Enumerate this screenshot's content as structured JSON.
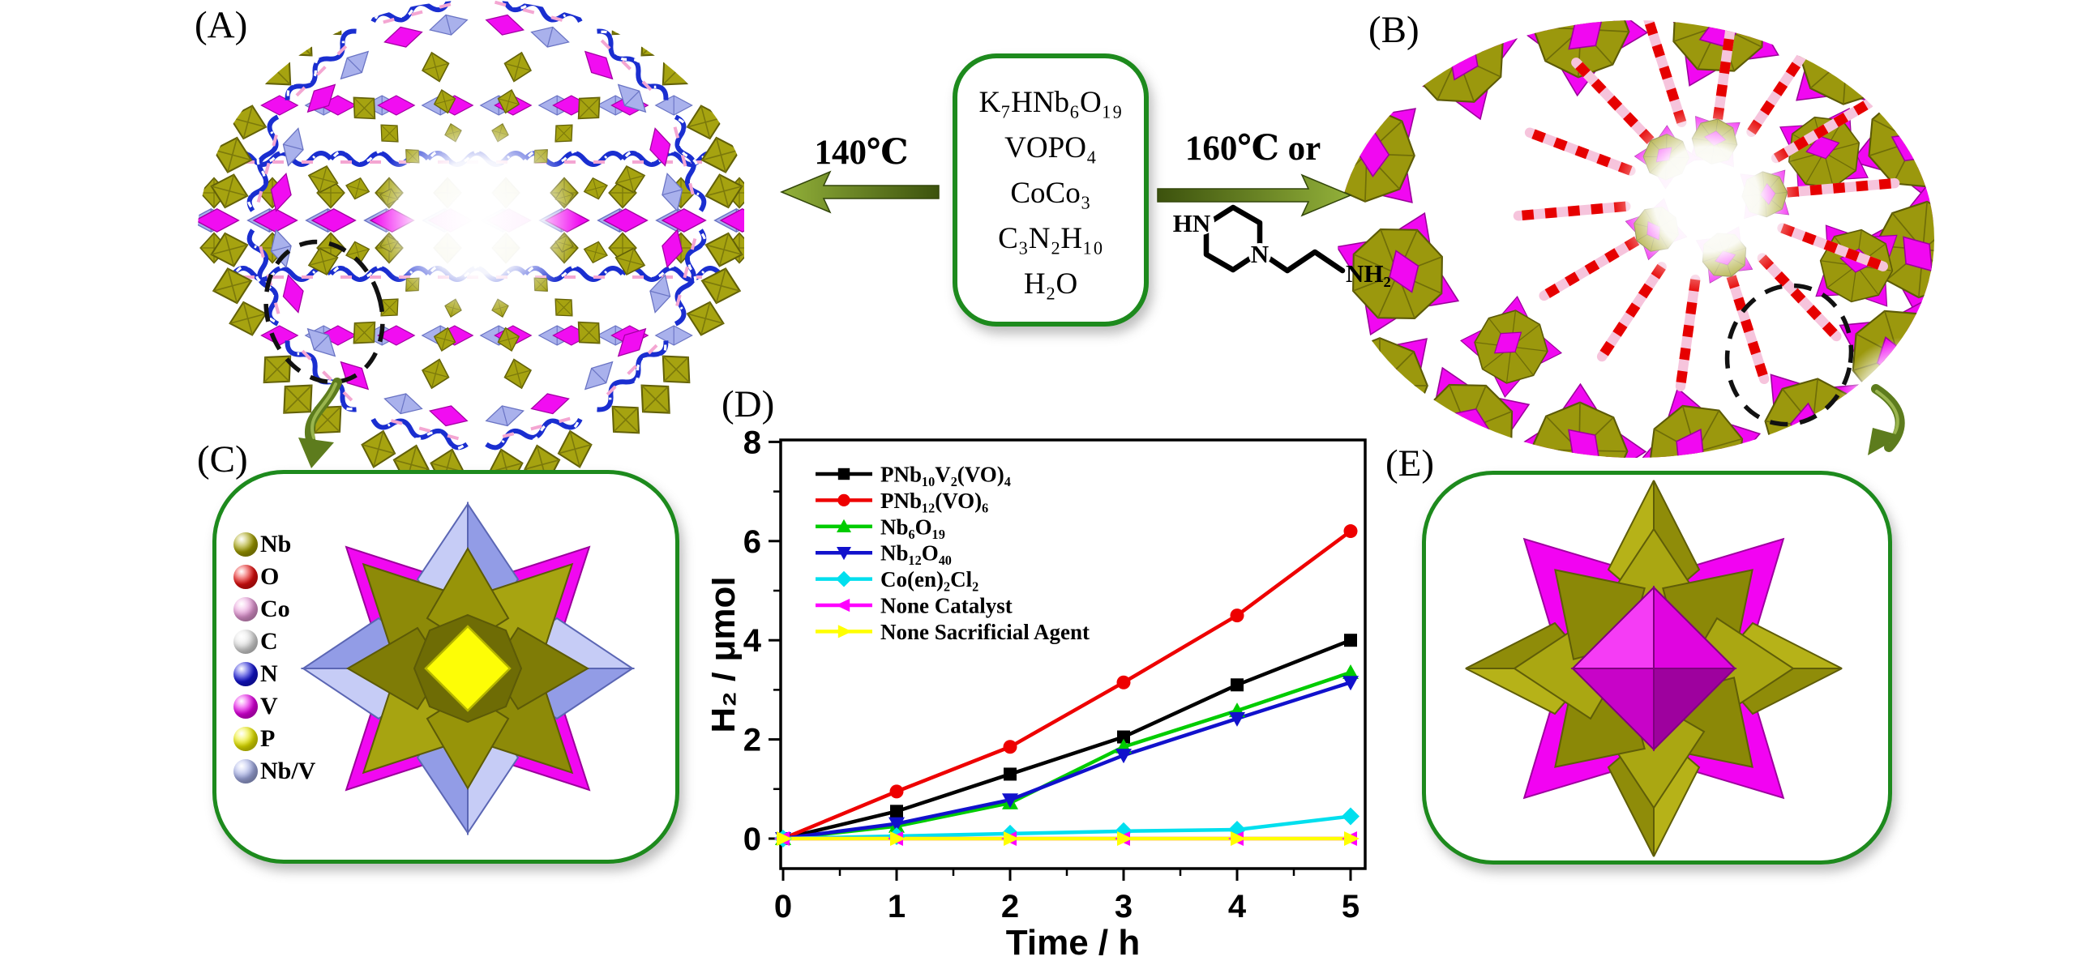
{
  "figure": {
    "panel_labels": {
      "a": "(A)",
      "b": "(B)",
      "c": "(C)",
      "d": "(D)",
      "e": "(E)"
    }
  },
  "reaction_box": {
    "reagents": [
      "K₇HNb₆O₁₉",
      "VOPO₄",
      "CoCo₃",
      "C₃N₂H₁₀",
      "H₂O"
    ]
  },
  "conditions": {
    "left_arrow_label": "140℃",
    "right_arrow_label": "160℃ or"
  },
  "amine_molecule": {
    "hn_label": "HN",
    "n_label": "N",
    "nh2_label": "NH₂"
  },
  "atom_legend": {
    "items": [
      {
        "label": "Nb",
        "color": "#a8a400"
      },
      {
        "label": "O",
        "color": "#ee1111"
      },
      {
        "label": "Co",
        "color": "#f0a0e0"
      },
      {
        "label": "C",
        "color": "#e8e8e8"
      },
      {
        "label": "N",
        "color": "#1414dd"
      },
      {
        "label": "V",
        "color": "#ee00ee"
      },
      {
        "label": "P",
        "color": "#f2f200"
      },
      {
        "label": "Nb/V",
        "color": "#aab4ee"
      }
    ]
  },
  "chart_data": {
    "type": "line",
    "title": "",
    "xlabel": "Time / h",
    "ylabel": "H₂ / μmol",
    "x": [
      0,
      1,
      2,
      3,
      4,
      5
    ],
    "xticks": [
      0,
      1,
      2,
      3,
      4,
      5
    ],
    "yticks": [
      0,
      2,
      4,
      6,
      8
    ],
    "xlim": [
      -0.06,
      5.15
    ],
    "ylim": [
      -0.6,
      8.05
    ],
    "grid": false,
    "legend_position": "upper-left",
    "series": [
      {
        "name": "PNb₁₀V₂(VO)₄",
        "color": "#000000",
        "marker": "square",
        "values": [
          0,
          0.55,
          1.3,
          2.05,
          3.1,
          4.0
        ]
      },
      {
        "name": "PNb₁₂(VO)₆",
        "color": "#ee0000",
        "marker": "circle",
        "values": [
          0,
          0.95,
          1.85,
          3.15,
          4.5,
          6.2
        ]
      },
      {
        "name": "Nb₆O₁₉",
        "color": "#00cc00",
        "marker": "triangle-up",
        "values": [
          0,
          0.25,
          0.72,
          1.85,
          2.58,
          3.35
        ]
      },
      {
        "name": "Nb₁₂O₄₀",
        "color": "#1111cc",
        "marker": "triangle-down",
        "values": [
          0,
          0.3,
          0.78,
          1.68,
          2.42,
          3.15
        ]
      },
      {
        "name": "Co(en)₂Cl₂",
        "color": "#00dfee",
        "marker": "diamond",
        "values": [
          0,
          0.05,
          0.1,
          0.15,
          0.18,
          0.45
        ]
      },
      {
        "name": "None Catalyst",
        "color": "#ff00ff",
        "marker": "triangle-left",
        "values": [
          0,
          0,
          0,
          0,
          0,
          0
        ]
      },
      {
        "name": "None Sacrificial Agent",
        "color": "#ffff00",
        "marker": "triangle-right",
        "values": [
          0,
          0,
          0,
          0,
          0,
          0
        ]
      }
    ]
  }
}
